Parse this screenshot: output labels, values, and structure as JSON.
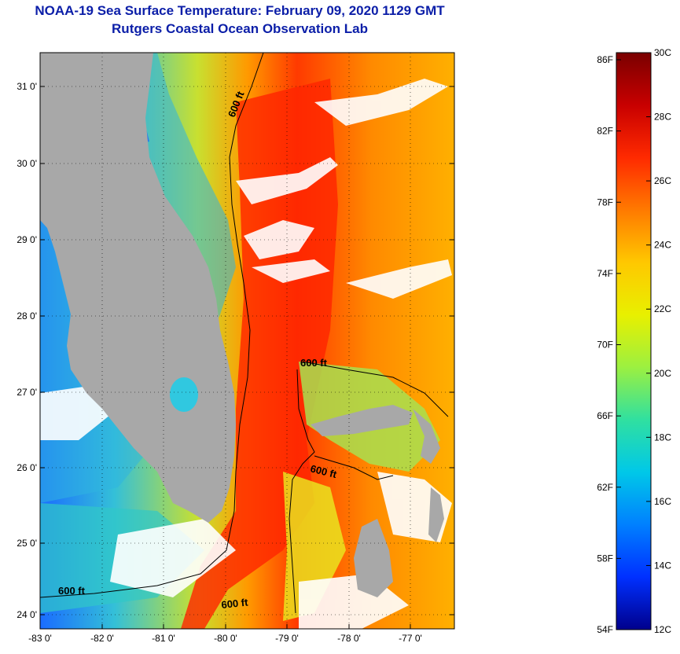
{
  "header": {
    "title": "NOAA-19 Sea Surface Temperature:  February 09, 2020 1129 GMT",
    "subtitle": "Rutgers Coastal Ocean Observation Lab"
  },
  "map": {
    "lon_ticks": [
      "-83 0'",
      "-82 0'",
      "-81 0'",
      "-80 0'",
      "-79 0'",
      "-78 0'",
      "-77 0'"
    ],
    "lat_ticks": [
      "31 0'",
      "30 0'",
      "29 0'",
      "28 0'",
      "27 0'",
      "26 0'",
      "25 0'",
      "24 0'"
    ],
    "contour_labels": [
      "600 ft",
      "600 ft",
      "600 ft",
      "600 ft",
      "600 ft"
    ],
    "colors": {
      "land": "#a8a8a8",
      "cloud": "#ffffff"
    }
  },
  "colorbar": {
    "fahrenheit_labels": [
      "86F",
      "82F",
      "78F",
      "74F",
      "70F",
      "66F",
      "62F",
      "58F",
      "54F"
    ],
    "celsius_labels": [
      "30C",
      "28C",
      "26C",
      "24C",
      "22C",
      "20C",
      "18C",
      "16C",
      "14C",
      "12C"
    ],
    "gradient": [
      "#7a0000",
      "#c80000",
      "#ff2a00",
      "#ff7a00",
      "#ffc800",
      "#e8f000",
      "#9cf040",
      "#30e0a0",
      "#00c8e8",
      "#0080ff",
      "#0030ff",
      "#00008c"
    ]
  }
}
